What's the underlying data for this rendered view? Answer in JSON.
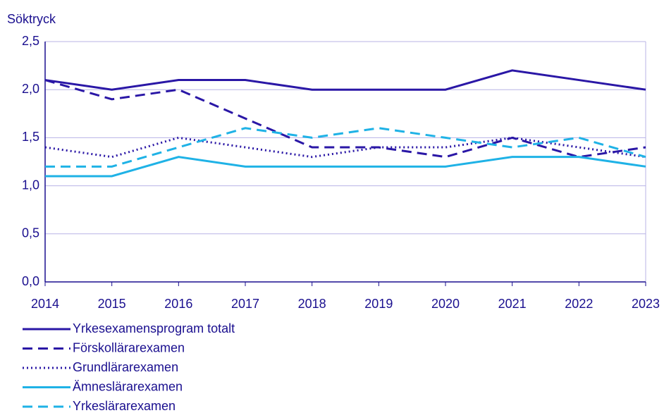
{
  "chart_data": {
    "type": "line",
    "y_label": "Söktryck",
    "categories": [
      "2014",
      "2015",
      "2016",
      "2017",
      "2018",
      "2019",
      "2020",
      "2021",
      "2022",
      "2023"
    ],
    "ylim": [
      0,
      2.5
    ],
    "yticks": [
      {
        "value": 0,
        "label": "0,0"
      },
      {
        "value": 0.5,
        "label": "0,5"
      },
      {
        "value": 1,
        "label": "1,0"
      },
      {
        "value": 1.5,
        "label": "1,5"
      },
      {
        "value": 2,
        "label": "2,0"
      },
      {
        "value": 2.5,
        "label": "2,5"
      }
    ],
    "grid": true,
    "series": [
      {
        "name": "Yrkesexamensprogram totalt",
        "color": "#2a17a6",
        "dash": "solid",
        "values": [
          2.1,
          2.0,
          2.1,
          2.1,
          2.0,
          2.0,
          2.0,
          2.2,
          2.1,
          2.0
        ]
      },
      {
        "name": "Förskollärarexamen",
        "color": "#2a17a6",
        "dash": "dashed",
        "values": [
          2.1,
          1.9,
          2.0,
          1.7,
          1.4,
          1.4,
          1.3,
          1.5,
          1.3,
          1.4
        ]
      },
      {
        "name": "Grundlärarexamen",
        "color": "#2a17a6",
        "dash": "dotted",
        "values": [
          1.4,
          1.3,
          1.5,
          1.4,
          1.3,
          1.4,
          1.4,
          1.5,
          1.4,
          1.3
        ]
      },
      {
        "name": "Ämneslärarexamen",
        "color": "#1fb2e6",
        "dash": "solid",
        "values": [
          1.1,
          1.1,
          1.3,
          1.2,
          1.2,
          1.2,
          1.2,
          1.3,
          1.3,
          1.2
        ]
      },
      {
        "name": "Yrkeslärarexamen",
        "color": "#1fb2e6",
        "dash": "dashed",
        "values": [
          1.2,
          1.2,
          1.4,
          1.6,
          1.5,
          1.6,
          1.5,
          1.4,
          1.5,
          1.3
        ]
      }
    ]
  }
}
